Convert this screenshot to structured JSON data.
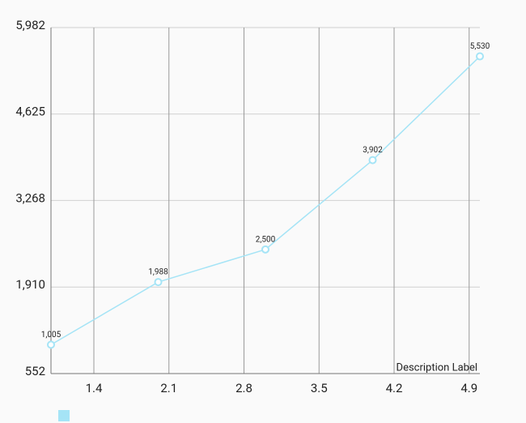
{
  "chart_data": {
    "type": "line",
    "x": [
      1.0,
      2.0,
      3.0,
      4.0,
      5.0
    ],
    "series": [
      {
        "color": "#a5e4f6",
        "values": [
          1005,
          1988,
          2500,
          3902,
          5530
        ],
        "value_labels": [
          "1,005",
          "1,988",
          "2,500",
          "3,902",
          "5,530"
        ]
      }
    ],
    "xlim": [
      1.0,
      5.0
    ],
    "xticks": [
      1.4,
      2.1,
      2.8,
      3.5,
      4.2,
      4.9
    ],
    "ylim": [
      552,
      5982
    ],
    "yticks": [
      552,
      {
        "value": 1910,
        "label": "1,910"
      },
      {
        "value": 3268,
        "label": "3,268"
      },
      {
        "value": 4625,
        "label": "4,625"
      },
      {
        "value": 5982,
        "label": "5,982"
      }
    ],
    "grid": true,
    "description": "Description Label"
  }
}
